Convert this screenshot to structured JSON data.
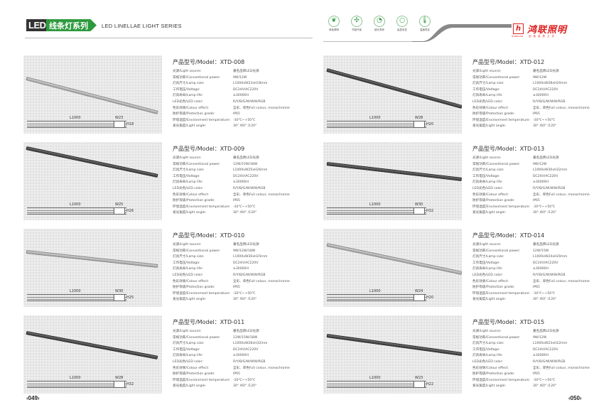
{
  "header": {
    "led": "LED",
    "cn_title": "线条灯系列",
    "en_title": "LED LINELLAE LIGHT SERIES"
  },
  "feature_icons": [
    {
      "icon": "leaf-icon",
      "glyph": "❦",
      "label": "绿色照明"
    },
    {
      "icon": "fan-icon",
      "glyph": "✣",
      "label": "节能环保"
    },
    {
      "icon": "clock-icon",
      "glyph": "◔",
      "label": "超长寿命"
    },
    {
      "icon": "ring-icon",
      "glyph": "○",
      "label": "高显色性"
    },
    {
      "icon": "thermometer-icon",
      "glyph": "🌡",
      "label": "温度恒定"
    }
  ],
  "brand": {
    "name": "鸿联照明",
    "mark_sub": "HONGLIAN",
    "slogan": "创造品质之光",
    "color": "#dd2222"
  },
  "accent": "#2e9a3e",
  "spec_labels": [
    "光源/Light source:",
    "常规功率/Conventional power:",
    "灯具尺寸/Lamp size:",
    "工作电压/Voltage:",
    "灯具寿命/Lamp life:",
    "LED光色/LED color:",
    "色彩效果/Colour effect:",
    "防护等级/Protection grade:",
    "环境温度/Environment temperature:",
    "发光角度/Light angle:"
  ],
  "model_prefix": "产品型号/Model：",
  "products": [
    {
      "model": "XTD-008",
      "finish": "light",
      "L": "L1000",
      "W": "W23",
      "H": "H18",
      "values": [
        "著名品牌LED光源",
        "9W/12W",
        "L1000xW23xH18mm",
        "DC24V/AC220V",
        "≥30000H",
        "R/Y/B/G/W/WW/RGB",
        "全彩、单色Full colour, monochrome",
        "IP65",
        "-30℃~+50℃",
        "30° /60° /120°"
      ]
    },
    {
      "model": "XTD-012",
      "finish": "dark",
      "L": "L1000",
      "W": "W28",
      "H": "H20",
      "values": [
        "著名品牌LED光源",
        "9W/12W",
        "L1000xW28xH20mm",
        "DC24V/AC220V",
        "≥30000H",
        "R/Y/B/G/W/WW/RGB",
        "全彩、单色Full colour, monochrome",
        "IP65",
        "-30℃~+50℃",
        "30° /60° /120°"
      ]
    },
    {
      "model": "XTD-009",
      "finish": "dark",
      "L": "L1000",
      "W": "W25",
      "H": "H26",
      "values": [
        "著名品牌LED光源",
        "12W/15W/18W",
        "L1000xW25xH26mm",
        "DC24V/AC220V",
        "≥30000H",
        "R/Y/B/G/W/WW/RGB",
        "全彩、单色Full colour, monochrome",
        "IP65",
        "-30℃~+50℃",
        "30° /60° /120°"
      ]
    },
    {
      "model": "XTD-013",
      "finish": "dark",
      "L": "L1000",
      "W": "W30",
      "H": "H32",
      "values": [
        "著名品牌LED光源",
        "9W/12W",
        "L1000xW30xH32mm",
        "DC24V/AC220V",
        "≥30000H",
        "R/Y/B/G/W/WW/RGB",
        "全彩、单色Full colour, monochrome",
        "IP65",
        "-30℃~+50℃",
        "30° /60° /120°"
      ]
    },
    {
      "model": "XTD-010",
      "finish": "light",
      "L": "L1000",
      "W": "W30",
      "H": "H25",
      "values": [
        "著名品牌LED光源",
        "9W/12W/18W",
        "L1000xW30xH25mm",
        "DC24V/AC220V",
        "≥30000H",
        "R/Y/B/G/W/WW/RGB",
        "全彩、单色Full colour, monochrome",
        "IP65",
        "-30℃~+50℃",
        "30° /60° /120°"
      ]
    },
    {
      "model": "XTD-014",
      "finish": "light",
      "L": "L1000",
      "W": "W24",
      "H": "H20",
      "values": [
        "著名品牌LED光源",
        "12W/15W",
        "L1000xW24xH20mm",
        "DC24V/AC220V",
        "≥30000H",
        "R/Y/B/G/W/WW/RGB",
        "全彩、单色Full colour, monochrome",
        "IP65",
        "-30℃~+50℃",
        "30° /60° /120°"
      ]
    },
    {
      "model": "XTD-011",
      "finish": "dark",
      "L": "L1000",
      "W": "W28",
      "H": "H32",
      "values": [
        "著名品牌LED光源",
        "12W/15W/18W",
        "L1000xW28xH32mm",
        "DC24V/AC220V",
        "≥30000H",
        "R/Y/B/G/W/WW/RGB",
        "全彩、单色Full colour, monochrome",
        "IP65",
        "-30℃~+50℃",
        "30° /60° /120°"
      ]
    },
    {
      "model": "XTD-015",
      "finish": "dark",
      "L": "L1000",
      "W": "W23",
      "H": "H22",
      "values": [
        "著名品牌LED光源",
        "9W/12W",
        "L1000xW23xH22mm",
        "DC24V/AC220V",
        "≥30000H",
        "R/Y/B/G/W/WW/RGB",
        "全彩、单色Full colour, monochrome",
        "IP65",
        "-30℃~+50℃",
        "30° /60° /120°"
      ]
    }
  ],
  "page_left": "‹049›",
  "page_right": "‹050›"
}
